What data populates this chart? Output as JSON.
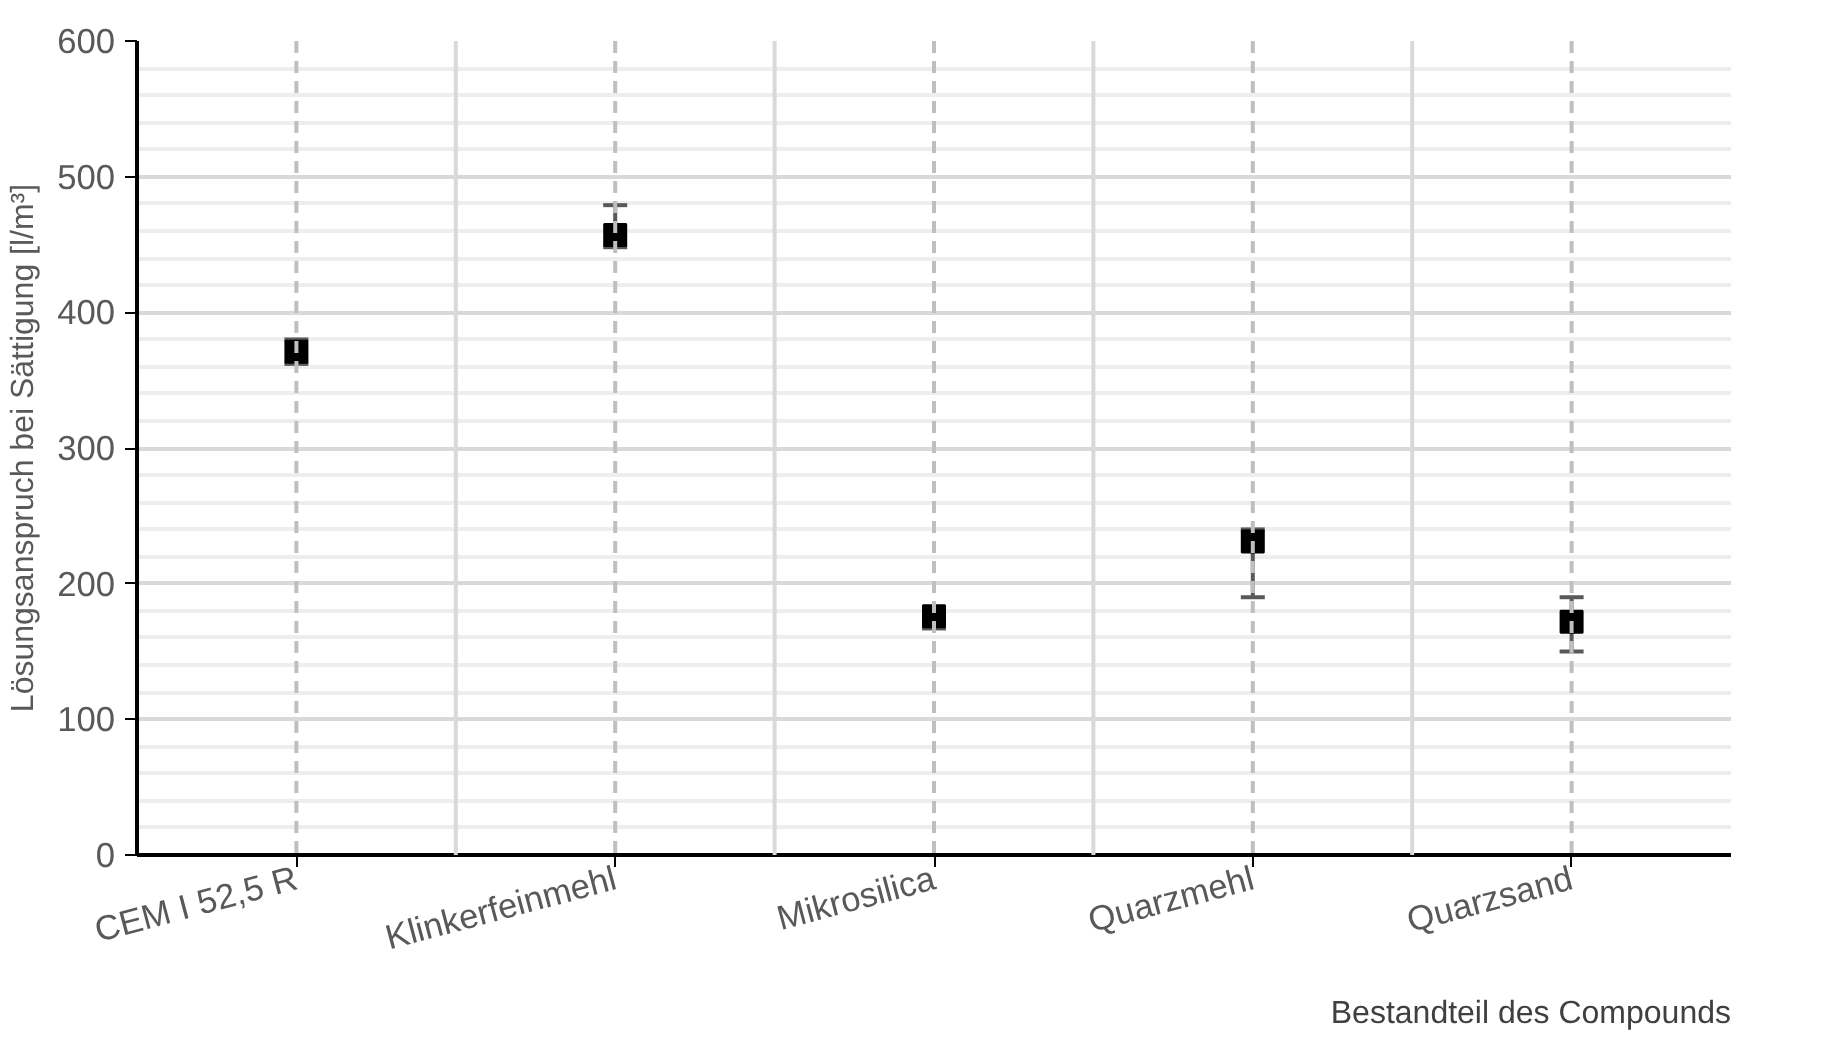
{
  "chart_data": {
    "type": "scatter",
    "categories": [
      "CEM I 52,5 R",
      "Klinkerfeinmehl",
      "Mikrosilica",
      "Quarzmehl",
      "Quarzsand"
    ],
    "series": [
      {
        "color": "#000000",
        "values": [
          371,
          457,
          176,
          231,
          172
        ],
        "errors": [
          [
            362,
            380
          ],
          [
            448,
            479
          ],
          [
            167,
            180
          ],
          [
            190,
            240
          ],
          [
            150,
            190
          ]
        ]
      }
    ],
    "xlabel": "Bestandteil des Compounds",
    "ylabel": "Lösungsanspruch bei Sättigung [l/m³]",
    "ylim": [
      0,
      600
    ],
    "yticks": [
      0,
      100,
      200,
      300,
      400,
      500,
      600
    ],
    "grid": true,
    "marker": "square"
  }
}
